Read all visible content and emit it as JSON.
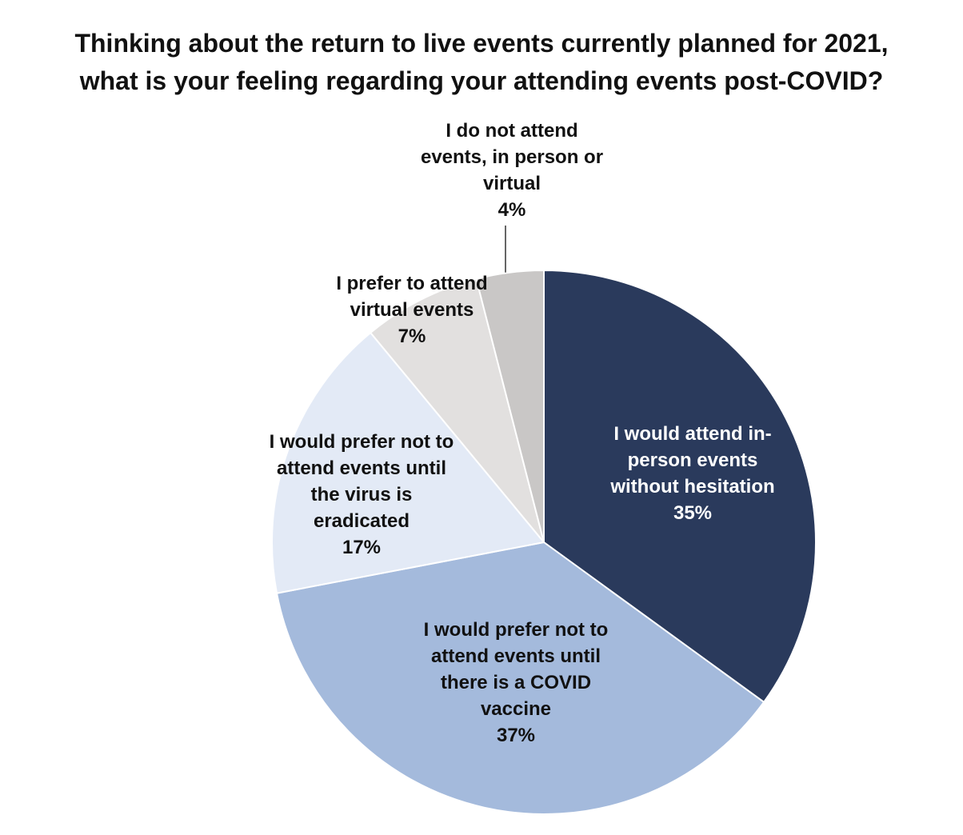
{
  "chart_data": {
    "type": "pie",
    "title_lines": [
      "Thinking about the return to live events currently planned for 2021,",
      "what is your feeling regarding your attending events post-COVID?"
    ],
    "slices": [
      {
        "label_lines": [
          "I would attend in-",
          "person events",
          "without hesitation"
        ],
        "value": 35,
        "value_label": "35%",
        "color": "#2a3a5c",
        "text_color": "#ffffff"
      },
      {
        "label_lines": [
          "I would prefer not to",
          "attend events until",
          "there is a COVID",
          "vaccine"
        ],
        "value": 37,
        "value_label": "37%",
        "color": "#a4badc",
        "text_color": "#111111"
      },
      {
        "label_lines": [
          "I would prefer not to",
          "attend events until",
          "the virus is",
          "eradicated"
        ],
        "value": 17,
        "value_label": "17%",
        "color": "#e3eaf6",
        "text_color": "#111111"
      },
      {
        "label_lines": [
          "I prefer to attend",
          "virtual events"
        ],
        "value": 7,
        "value_label": "7%",
        "color": "#e2e0df",
        "text_color": "#111111"
      },
      {
        "label_lines": [
          "I do not attend",
          "events, in person or",
          "virtual"
        ],
        "value": 4,
        "value_label": "4%",
        "color": "#c9c7c6",
        "text_color": "#111111"
      }
    ],
    "start_angle_deg": 0,
    "direction": "clockwise"
  }
}
